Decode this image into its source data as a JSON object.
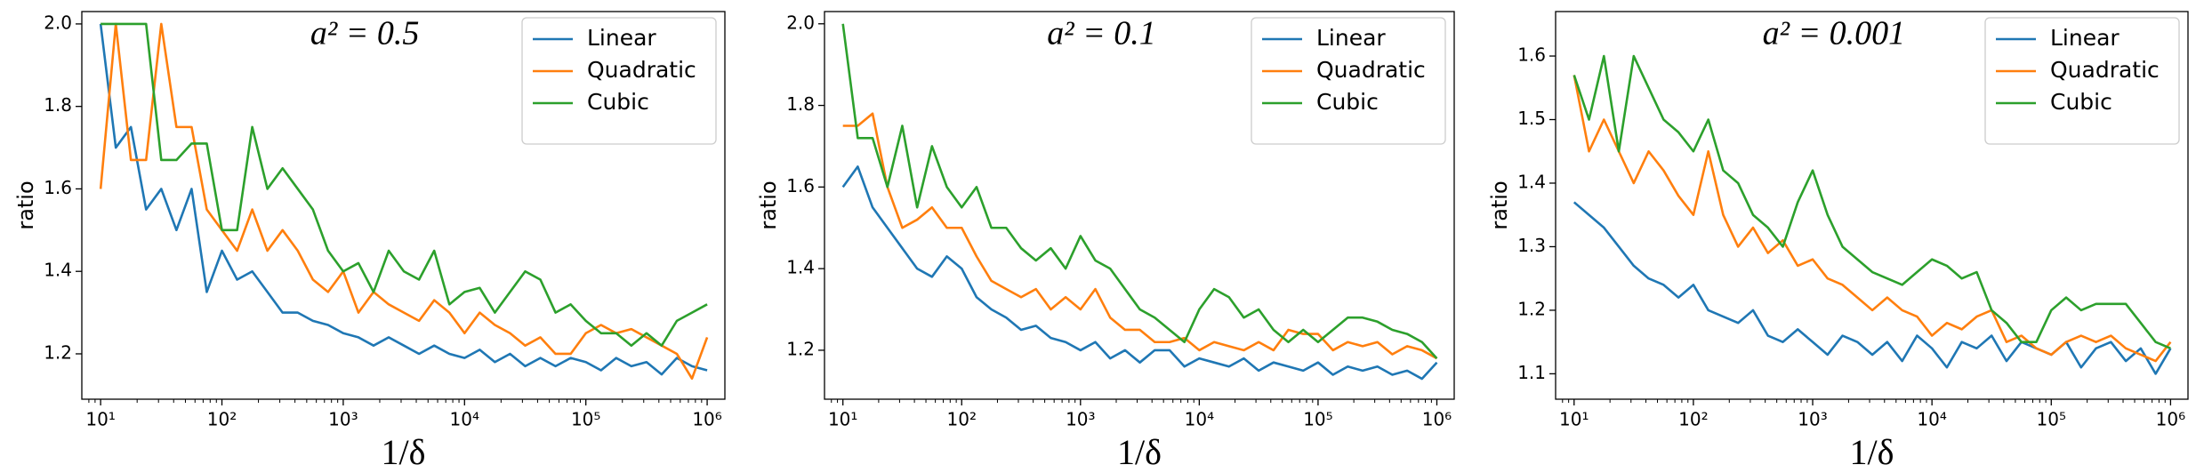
{
  "chart_data": [
    {
      "type": "line",
      "title": "a² = 0.5",
      "xlabel": "1/δ",
      "ylabel": "ratio",
      "xscale": "log",
      "legend": "upper right",
      "x": [
        10,
        13.34,
        17.78,
        23.71,
        31.62,
        42.17,
        56.23,
        74.99,
        100,
        133.4,
        177.8,
        237.1,
        316.2,
        421.7,
        562.3,
        749.9,
        1000,
        1334,
        1778,
        2371,
        3162,
        4217,
        5623,
        7499,
        10000,
        13335,
        17783,
        23714,
        31623,
        42170,
        56234,
        74989,
        100000,
        133352,
        177828,
        237137,
        316228,
        421697,
        562341,
        749894,
        1000000
      ],
      "xlim": [
        7,
        1400000
      ],
      "xticks": [
        {
          "value": 10,
          "label": "10¹"
        },
        {
          "value": 100,
          "label": "10²"
        },
        {
          "value": 1000,
          "label": "10³"
        },
        {
          "value": 10000,
          "label": "10⁴"
        },
        {
          "value": 100000,
          "label": "10⁵"
        },
        {
          "value": 1000000,
          "label": "10⁶"
        }
      ],
      "ylim": [
        1.09,
        2.03
      ],
      "yticks": [
        1.2,
        1.4,
        1.6,
        1.8,
        {
          "value": 2,
          "label": "2.0"
        }
      ],
      "series": [
        {
          "name": "Linear",
          "color": "#1f77b4",
          "values": [
            2.0,
            1.7,
            1.75,
            1.55,
            1.6,
            1.5,
            1.6,
            1.35,
            1.45,
            1.38,
            1.4,
            1.35,
            1.3,
            1.3,
            1.28,
            1.27,
            1.25,
            1.24,
            1.22,
            1.24,
            1.22,
            1.2,
            1.22,
            1.2,
            1.19,
            1.21,
            1.18,
            1.2,
            1.17,
            1.19,
            1.17,
            1.19,
            1.18,
            1.16,
            1.19,
            1.17,
            1.18,
            1.15,
            1.19,
            1.17,
            1.16
          ]
        },
        {
          "name": "Quadratic",
          "color": "#ff7f0e",
          "values": [
            1.6,
            2.0,
            1.67,
            1.67,
            2.0,
            1.75,
            1.75,
            1.55,
            1.5,
            1.45,
            1.55,
            1.45,
            1.5,
            1.45,
            1.38,
            1.35,
            1.4,
            1.3,
            1.35,
            1.32,
            1.3,
            1.28,
            1.33,
            1.3,
            1.25,
            1.3,
            1.27,
            1.25,
            1.22,
            1.24,
            1.2,
            1.2,
            1.25,
            1.27,
            1.25,
            1.26,
            1.24,
            1.22,
            1.2,
            1.14,
            1.24
          ]
        },
        {
          "name": "Cubic",
          "color": "#2ca02c",
          "values": [
            2.0,
            2.0,
            2.0,
            2.0,
            1.67,
            1.67,
            1.71,
            1.71,
            1.5,
            1.5,
            1.75,
            1.6,
            1.65,
            1.6,
            1.55,
            1.45,
            1.4,
            1.42,
            1.35,
            1.45,
            1.4,
            1.38,
            1.45,
            1.32,
            1.35,
            1.36,
            1.3,
            1.35,
            1.4,
            1.38,
            1.3,
            1.32,
            1.28,
            1.25,
            1.25,
            1.22,
            1.25,
            1.22,
            1.28,
            1.3,
            1.32
          ]
        }
      ]
    },
    {
      "type": "line",
      "title": "a² = 0.1",
      "xlabel": "1/δ",
      "ylabel": "ratio",
      "xscale": "log",
      "legend": "upper right",
      "x": [
        10,
        13.34,
        17.78,
        23.71,
        31.62,
        42.17,
        56.23,
        74.99,
        100,
        133.4,
        177.8,
        237.1,
        316.2,
        421.7,
        562.3,
        749.9,
        1000,
        1334,
        1778,
        2371,
        3162,
        4217,
        5623,
        7499,
        10000,
        13335,
        17783,
        23714,
        31623,
        42170,
        56234,
        74989,
        100000,
        133352,
        177828,
        237137,
        316228,
        421697,
        562341,
        749894,
        1000000
      ],
      "xlim": [
        7,
        1400000
      ],
      "xticks": [
        {
          "value": 10,
          "label": "10¹"
        },
        {
          "value": 100,
          "label": "10²"
        },
        {
          "value": 1000,
          "label": "10³"
        },
        {
          "value": 10000,
          "label": "10⁴"
        },
        {
          "value": 100000,
          "label": "10⁵"
        },
        {
          "value": 1000000,
          "label": "10⁶"
        }
      ],
      "ylim": [
        1.08,
        2.03
      ],
      "yticks": [
        1.2,
        1.4,
        1.6,
        1.8,
        {
          "value": 2,
          "label": "2.0"
        }
      ],
      "series": [
        {
          "name": "Linear",
          "color": "#1f77b4",
          "values": [
            1.6,
            1.65,
            1.55,
            1.5,
            1.45,
            1.4,
            1.38,
            1.43,
            1.4,
            1.33,
            1.3,
            1.28,
            1.25,
            1.26,
            1.23,
            1.22,
            1.2,
            1.22,
            1.18,
            1.2,
            1.17,
            1.2,
            1.2,
            1.16,
            1.18,
            1.17,
            1.16,
            1.18,
            1.15,
            1.17,
            1.16,
            1.15,
            1.17,
            1.14,
            1.16,
            1.15,
            1.16,
            1.14,
            1.15,
            1.13,
            1.17
          ]
        },
        {
          "name": "Quadratic",
          "color": "#ff7f0e",
          "values": [
            1.75,
            1.75,
            1.78,
            1.6,
            1.5,
            1.52,
            1.55,
            1.5,
            1.5,
            1.43,
            1.37,
            1.35,
            1.33,
            1.35,
            1.3,
            1.33,
            1.3,
            1.35,
            1.28,
            1.25,
            1.25,
            1.22,
            1.22,
            1.23,
            1.2,
            1.22,
            1.21,
            1.2,
            1.22,
            1.2,
            1.25,
            1.24,
            1.24,
            1.2,
            1.22,
            1.21,
            1.22,
            1.19,
            1.21,
            1.2,
            1.18
          ]
        },
        {
          "name": "Cubic",
          "color": "#2ca02c",
          "values": [
            2.0,
            1.72,
            1.72,
            1.6,
            1.75,
            1.55,
            1.7,
            1.6,
            1.55,
            1.6,
            1.5,
            1.5,
            1.45,
            1.42,
            1.45,
            1.4,
            1.48,
            1.42,
            1.4,
            1.35,
            1.3,
            1.28,
            1.25,
            1.22,
            1.3,
            1.35,
            1.33,
            1.28,
            1.3,
            1.25,
            1.22,
            1.25,
            1.22,
            1.25,
            1.28,
            1.28,
            1.27,
            1.25,
            1.24,
            1.22,
            1.18
          ]
        }
      ]
    },
    {
      "type": "line",
      "title": "a² = 0.001",
      "xlabel": "1/δ",
      "ylabel": "ratio",
      "xscale": "log",
      "legend": "upper right",
      "x": [
        10,
        13.34,
        17.78,
        23.71,
        31.62,
        42.17,
        56.23,
        74.99,
        100,
        133.4,
        177.8,
        237.1,
        316.2,
        421.7,
        562.3,
        749.9,
        1000,
        1334,
        1778,
        2371,
        3162,
        4217,
        5623,
        7499,
        10000,
        13335,
        17783,
        23714,
        31623,
        42170,
        56234,
        74989,
        100000,
        133352,
        177828,
        237137,
        316228,
        421697,
        562341,
        749894,
        1000000
      ],
      "xlim": [
        7,
        1400000
      ],
      "xticks": [
        {
          "value": 10,
          "label": "10¹"
        },
        {
          "value": 100,
          "label": "10²"
        },
        {
          "value": 1000,
          "label": "10³"
        },
        {
          "value": 10000,
          "label": "10⁴"
        },
        {
          "value": 100000,
          "label": "10⁵"
        },
        {
          "value": 1000000,
          "label": "10⁶"
        }
      ],
      "ylim": [
        1.06,
        1.67
      ],
      "yticks": [
        1.1,
        1.2,
        1.3,
        1.4,
        1.5,
        1.6
      ],
      "series": [
        {
          "name": "Linear",
          "color": "#1f77b4",
          "values": [
            1.37,
            1.35,
            1.33,
            1.3,
            1.27,
            1.25,
            1.24,
            1.22,
            1.24,
            1.2,
            1.19,
            1.18,
            1.2,
            1.16,
            1.15,
            1.17,
            1.15,
            1.13,
            1.16,
            1.15,
            1.13,
            1.15,
            1.12,
            1.16,
            1.14,
            1.11,
            1.15,
            1.14,
            1.16,
            1.12,
            1.15,
            1.14,
            1.13,
            1.15,
            1.11,
            1.14,
            1.15,
            1.12,
            1.14,
            1.1,
            1.14
          ]
        },
        {
          "name": "Quadratic",
          "color": "#ff7f0e",
          "values": [
            1.57,
            1.45,
            1.5,
            1.45,
            1.4,
            1.45,
            1.42,
            1.38,
            1.35,
            1.45,
            1.35,
            1.3,
            1.33,
            1.29,
            1.31,
            1.27,
            1.28,
            1.25,
            1.24,
            1.22,
            1.2,
            1.22,
            1.2,
            1.19,
            1.16,
            1.18,
            1.17,
            1.19,
            1.2,
            1.15,
            1.16,
            1.14,
            1.13,
            1.15,
            1.16,
            1.15,
            1.16,
            1.14,
            1.13,
            1.12,
            1.15
          ]
        },
        {
          "name": "Cubic",
          "color": "#2ca02c",
          "values": [
            1.57,
            1.5,
            1.6,
            1.45,
            1.6,
            1.55,
            1.5,
            1.48,
            1.45,
            1.5,
            1.42,
            1.4,
            1.35,
            1.33,
            1.3,
            1.37,
            1.42,
            1.35,
            1.3,
            1.28,
            1.26,
            1.25,
            1.24,
            1.26,
            1.28,
            1.27,
            1.25,
            1.26,
            1.2,
            1.18,
            1.15,
            1.15,
            1.2,
            1.22,
            1.2,
            1.21,
            1.21,
            1.21,
            1.18,
            1.15,
            1.14
          ]
        }
      ]
    }
  ]
}
